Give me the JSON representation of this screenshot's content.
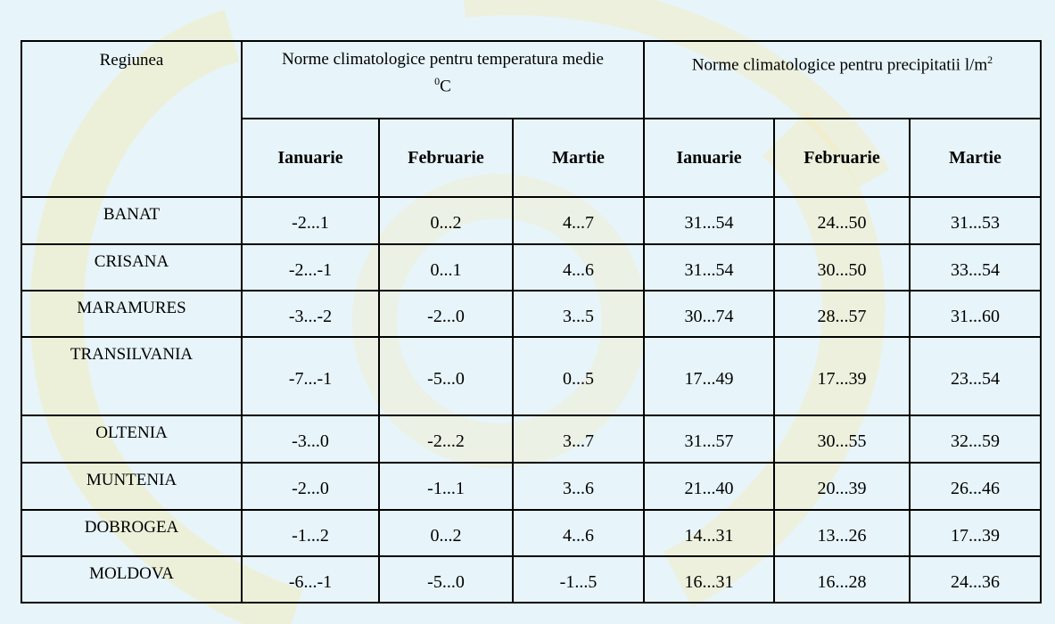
{
  "table": {
    "region_header": "Regiunea",
    "temp_header": "Norme climatologice pentru temperatura medie",
    "temp_unit_sup": "0",
    "temp_unit": "C",
    "precip_header": "Norme climatologice pentru precipitatii l/m",
    "precip_unit_sup": "2",
    "months": [
      "Ianuarie",
      "Februarie",
      "Martie",
      "Ianuarie",
      "Februarie",
      "Martie"
    ],
    "rows": [
      {
        "region": "BANAT",
        "values": [
          "-2...1",
          "0...2",
          "4...7",
          "31...54",
          "24...50",
          "31...53"
        ]
      },
      {
        "region": "CRISANA",
        "values": [
          "-2...-1",
          "0...1",
          "4...6",
          "31...54",
          "30...50",
          "33...54"
        ]
      },
      {
        "region": "MARAMURES",
        "values": [
          "-3...-2",
          "-2...0",
          "3...5",
          "30...74",
          "28...57",
          "31...60"
        ]
      },
      {
        "region": "TRANSILVANIA",
        "values": [
          "-7...-1",
          "-5...0",
          "0...5",
          "17...49",
          "17...39",
          "23...54"
        ]
      },
      {
        "region": "OLTENIA",
        "values": [
          "-3...0",
          "-2...2",
          "3...7",
          "31...57",
          "30...55",
          "32...59"
        ]
      },
      {
        "region": "MUNTENIA",
        "values": [
          "-2...0",
          "-1...1",
          "3...6",
          "21...40",
          "20...39",
          "26...46"
        ]
      },
      {
        "region": "DOBROGEA",
        "values": [
          "-1...2",
          "0...2",
          "4...6",
          "14...31",
          "13...26",
          "17...39"
        ]
      },
      {
        "region": "MOLDOVA",
        "values": [
          "-6...-1",
          "-5...0",
          "-1...5",
          "16...31",
          "16...28",
          "24...36"
        ]
      }
    ]
  }
}
